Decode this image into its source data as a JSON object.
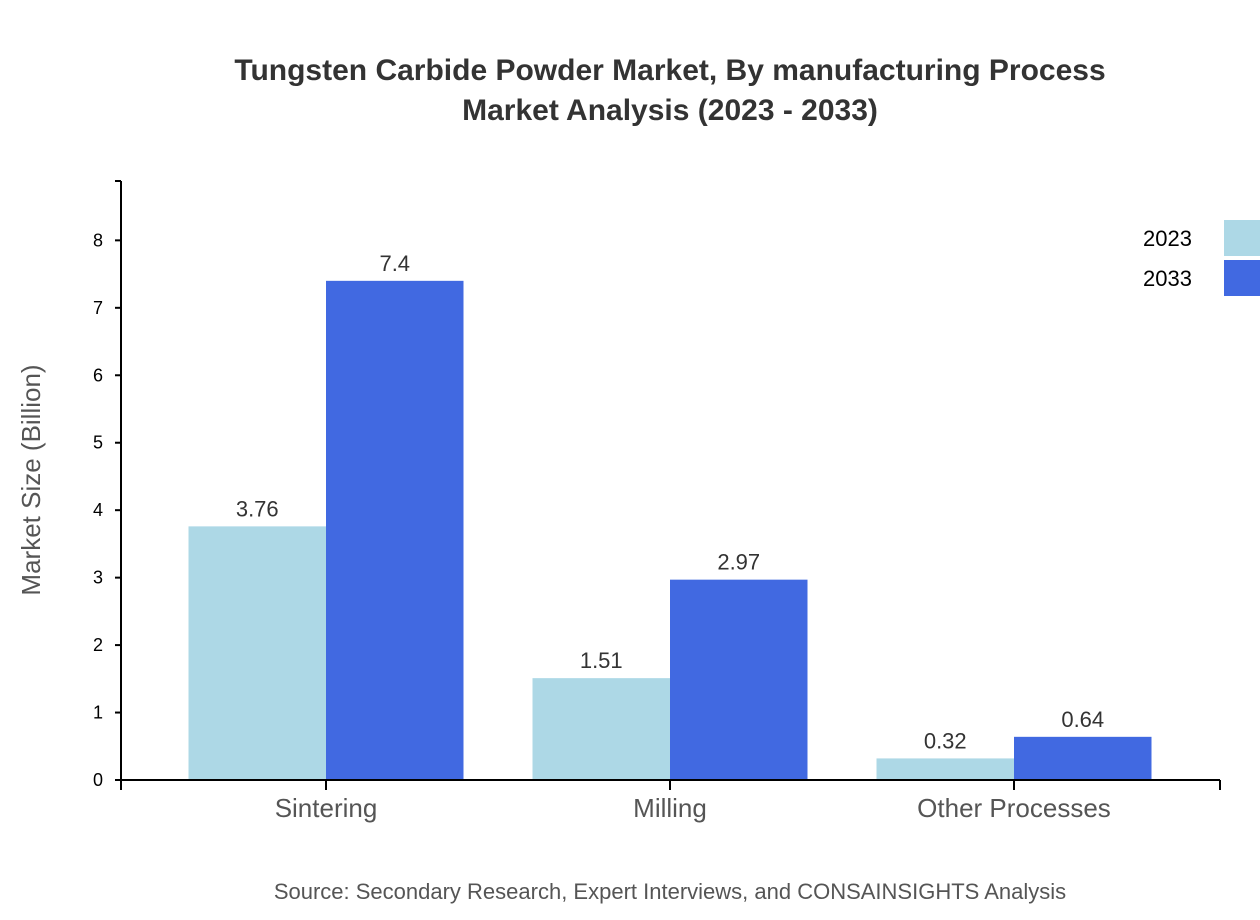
{
  "chart_data": {
    "type": "bar",
    "title": "Tungsten Carbide Powder Market, By manufacturing Process",
    "subtitle": "Market Analysis (2023 - 2033)",
    "xlabel": "",
    "ylabel": "Market Size (Billion)",
    "categories": [
      "Sintering",
      "Milling",
      "Other Processes"
    ],
    "series": [
      {
        "name": "2023",
        "values": [
          3.76,
          1.51,
          0.32
        ],
        "color": "#add8e6"
      },
      {
        "name": "2033",
        "values": [
          7.4,
          2.97,
          0.64
        ],
        "color": "#4169e1"
      }
    ],
    "ylim": [
      0,
      8.88
    ],
    "yticks": [
      0,
      1,
      2,
      3,
      4,
      5,
      6,
      7,
      8
    ],
    "grid": false,
    "legend": "top-right",
    "source": "Source: Secondary Research, Expert Interviews, and CONSAINSIGHTS Analysis"
  }
}
